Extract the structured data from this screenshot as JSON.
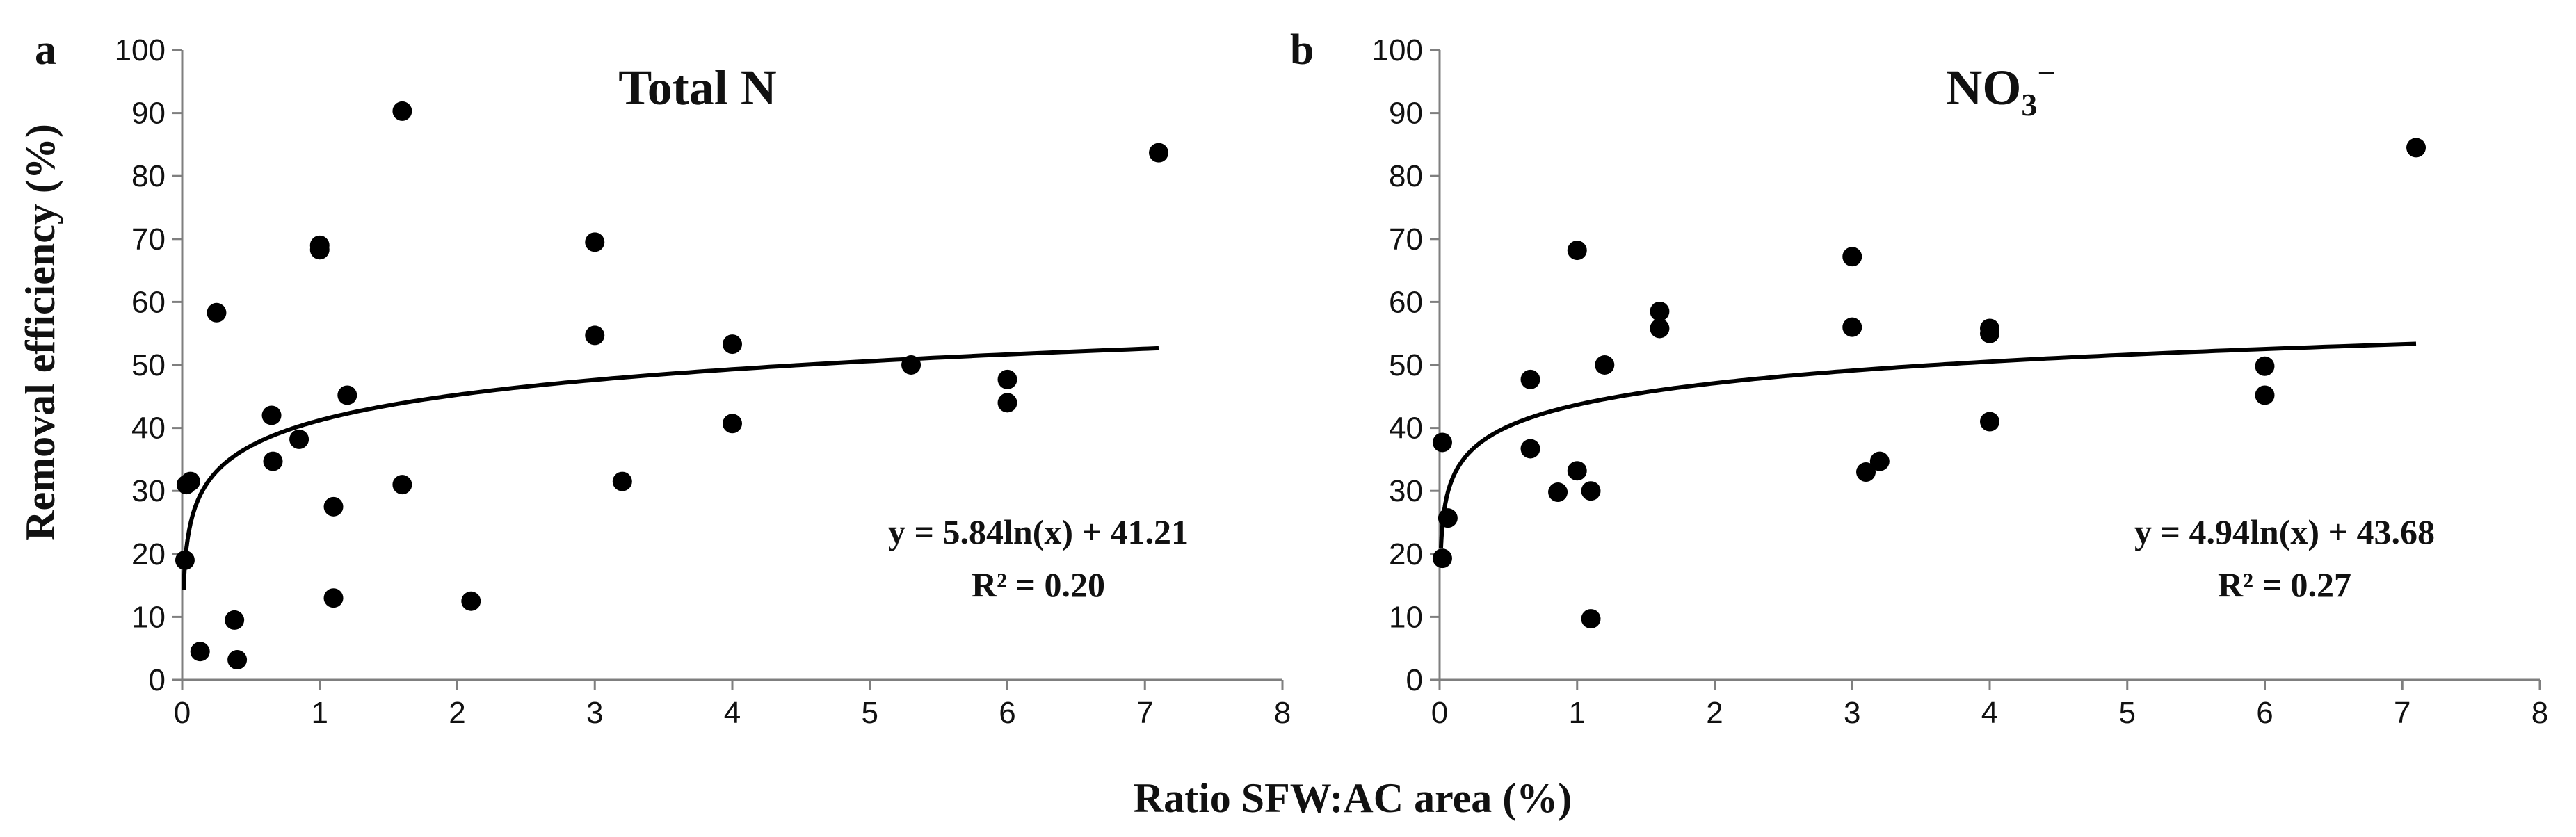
{
  "figure": {
    "shared_xlabel": "Ratio SFW:AC area (%)",
    "ylabel": "Removal efficiency (%)"
  },
  "chart_data": [
    {
      "type": "scatter",
      "panel_label": "a",
      "title": "Total N",
      "xlabel": "Ratio SFW:AC area (%)",
      "ylabel": "Removal efficiency (%)",
      "xlim": [
        0,
        8
      ],
      "ylim": [
        0,
        100
      ],
      "xticks": [
        0,
        1,
        2,
        3,
        4,
        5,
        6,
        7,
        8
      ],
      "yticks": [
        0,
        10,
        20,
        30,
        40,
        50,
        60,
        70,
        80,
        90,
        100
      ],
      "grid": false,
      "points": [
        {
          "x": 0.02,
          "y": 19
        },
        {
          "x": 0.03,
          "y": 31
        },
        {
          "x": 0.06,
          "y": 31.5
        },
        {
          "x": 0.13,
          "y": 4.5
        },
        {
          "x": 0.25,
          "y": 58.3
        },
        {
          "x": 0.38,
          "y": 9.5
        },
        {
          "x": 0.4,
          "y": 3.2
        },
        {
          "x": 0.65,
          "y": 42
        },
        {
          "x": 0.66,
          "y": 34.7
        },
        {
          "x": 0.85,
          "y": 38.2
        },
        {
          "x": 1.0,
          "y": 68.3
        },
        {
          "x": 1.0,
          "y": 69
        },
        {
          "x": 1.1,
          "y": 27.5
        },
        {
          "x": 1.1,
          "y": 13
        },
        {
          "x": 1.2,
          "y": 45.2
        },
        {
          "x": 1.6,
          "y": 90.3
        },
        {
          "x": 1.6,
          "y": 31
        },
        {
          "x": 2.1,
          "y": 12.5
        },
        {
          "x": 3.0,
          "y": 69.5
        },
        {
          "x": 3.0,
          "y": 54.7
        },
        {
          "x": 3.2,
          "y": 31.5
        },
        {
          "x": 4.0,
          "y": 53.3
        },
        {
          "x": 4.0,
          "y": 40.7
        },
        {
          "x": 5.3,
          "y": 50
        },
        {
          "x": 6.0,
          "y": 47.7
        },
        {
          "x": 6.0,
          "y": 44
        },
        {
          "x": 7.1,
          "y": 83.7
        }
      ],
      "trendline": {
        "type": "logarithmic",
        "a": 5.84,
        "b": 41.21,
        "x_range": [
          0.01,
          7.1
        ]
      },
      "equation": "y = 5.84ln(x) + 41.21",
      "r2": "R² = 0.20"
    },
    {
      "type": "scatter",
      "panel_label": "b",
      "title": "NO3−",
      "title_main": "NO",
      "title_sub": "3",
      "title_sup": "−",
      "xlabel": "Ratio SFW:AC area (%)",
      "ylabel": "Removal efficiency (%)",
      "xlim": [
        0,
        8
      ],
      "ylim": [
        0,
        100
      ],
      "xticks": [
        0,
        1,
        2,
        3,
        4,
        5,
        6,
        7,
        8
      ],
      "yticks": [
        0,
        10,
        20,
        30,
        40,
        50,
        60,
        70,
        80,
        90,
        100
      ],
      "grid": false,
      "points": [
        {
          "x": 0.02,
          "y": 37.7
        },
        {
          "x": 0.02,
          "y": 19.3
        },
        {
          "x": 0.06,
          "y": 25.7
        },
        {
          "x": 0.66,
          "y": 47.7
        },
        {
          "x": 0.66,
          "y": 36.7
        },
        {
          "x": 0.86,
          "y": 29.8
        },
        {
          "x": 1.0,
          "y": 68.2
        },
        {
          "x": 1.0,
          "y": 33.2
        },
        {
          "x": 1.1,
          "y": 30
        },
        {
          "x": 1.1,
          "y": 9.7
        },
        {
          "x": 1.2,
          "y": 50
        },
        {
          "x": 1.6,
          "y": 58.5
        },
        {
          "x": 1.6,
          "y": 55.8
        },
        {
          "x": 3.0,
          "y": 67.2
        },
        {
          "x": 3.0,
          "y": 56
        },
        {
          "x": 3.1,
          "y": 33
        },
        {
          "x": 3.2,
          "y": 34.7
        },
        {
          "x": 4.0,
          "y": 55.8
        },
        {
          "x": 4.0,
          "y": 55
        },
        {
          "x": 4.0,
          "y": 41
        },
        {
          "x": 6.0,
          "y": 49.8
        },
        {
          "x": 6.0,
          "y": 45.2
        },
        {
          "x": 7.1,
          "y": 84.5
        }
      ],
      "trendline": {
        "type": "logarithmic",
        "a": 4.94,
        "b": 43.68,
        "x_range": [
          0.01,
          7.1
        ]
      },
      "equation": "y = 4.94ln(x) + 43.68",
      "r2": "R² = 0.27"
    }
  ]
}
